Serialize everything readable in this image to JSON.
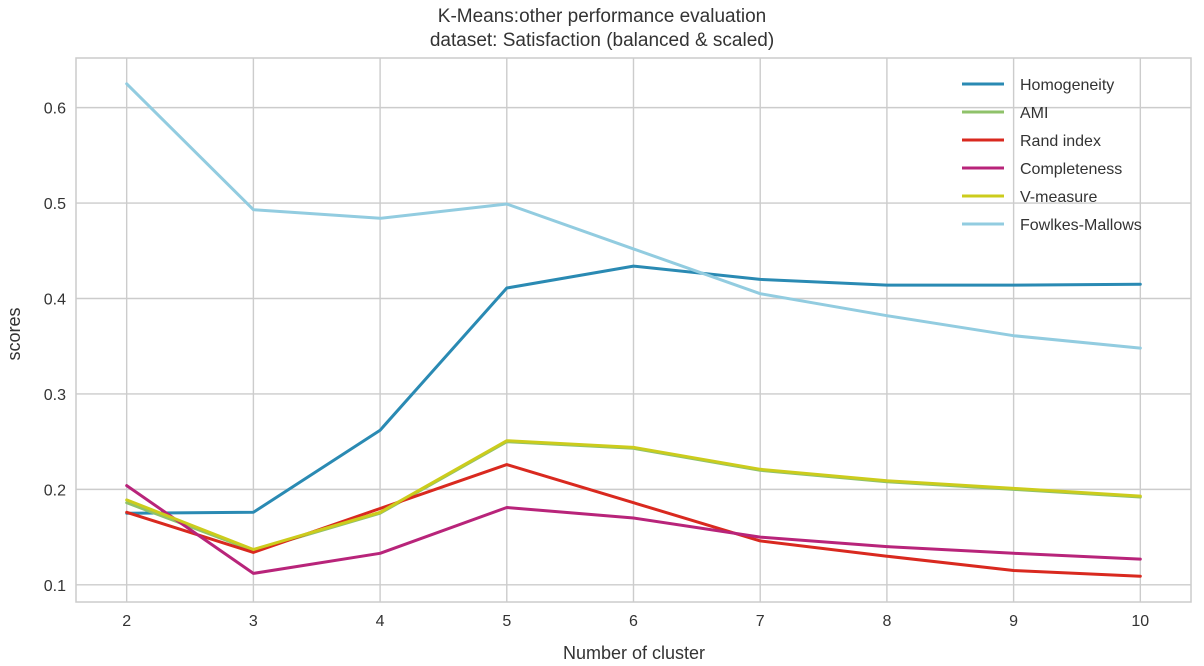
{
  "chart_data": {
    "type": "line",
    "title": "K-Means:other performance evaluation",
    "subtitle": "dataset: Satisfaction (balanced & scaled)",
    "xlabel": "Number of cluster",
    "ylabel": "scores",
    "x": [
      2,
      3,
      4,
      5,
      6,
      7,
      8,
      9,
      10
    ],
    "xlim": [
      1.6,
      10.4
    ],
    "ylim": [
      0.082,
      0.652
    ],
    "yticks": [
      0.1,
      0.2,
      0.3,
      0.4,
      0.5,
      0.6
    ],
    "ytick_labels": [
      "0.1",
      "0.2",
      "0.3",
      "0.4",
      "0.5",
      "0.6"
    ],
    "xtick_labels": [
      "2",
      "3",
      "4",
      "5",
      "6",
      "7",
      "8",
      "9",
      "10"
    ],
    "grid": true,
    "legend_position": "top-right",
    "series": [
      {
        "name": "Homogeneity",
        "color": "#2a8ab3",
        "values": [
          0.175,
          0.176,
          0.262,
          0.411,
          0.434,
          0.42,
          0.414,
          0.414,
          0.415
        ]
      },
      {
        "name": "AMI",
        "color": "#8fc26a",
        "values": [
          0.186,
          0.136,
          0.175,
          0.25,
          0.243,
          0.22,
          0.208,
          0.2,
          0.192
        ]
      },
      {
        "name": "Rand index",
        "color": "#d9291f",
        "values": [
          0.176,
          0.134,
          0.18,
          0.226,
          0.186,
          0.146,
          0.13,
          0.115,
          0.109
        ]
      },
      {
        "name": "Completeness",
        "color": "#b8247a",
        "values": [
          0.204,
          0.112,
          0.133,
          0.181,
          0.17,
          0.15,
          0.14,
          0.133,
          0.127
        ]
      },
      {
        "name": "V-measure",
        "color": "#cccc1c",
        "values": [
          0.189,
          0.137,
          0.176,
          0.251,
          0.244,
          0.221,
          0.209,
          0.201,
          0.193
        ]
      },
      {
        "name": "Fowlkes-Mallows",
        "color": "#92cce0",
        "values": [
          0.625,
          0.493,
          0.484,
          0.499,
          0.452,
          0.405,
          0.382,
          0.361,
          0.348
        ]
      }
    ]
  }
}
